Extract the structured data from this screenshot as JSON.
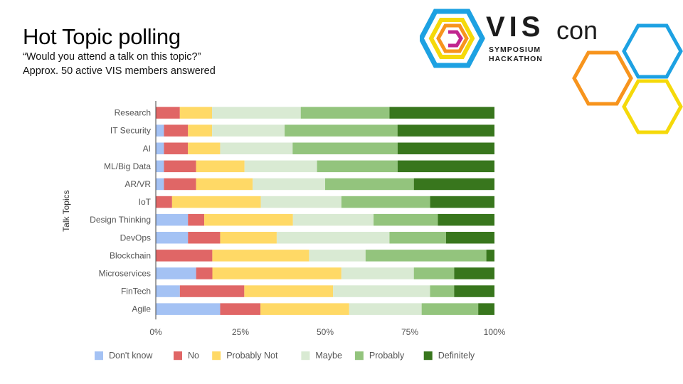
{
  "header": {
    "title": "Hot Topic polling",
    "subtitle_1": "“Would you attend a talk on this topic?”",
    "subtitle_2": "Approx. 50 active VIS members answered"
  },
  "logo": {
    "brand_bold": "VIS",
    "brand_light": "con",
    "line1": "SYMPOSIUM",
    "line2": "HACKATHON",
    "colors": [
      "#1da1e2",
      "#f7941d",
      "#f5d90a",
      "#c1268f"
    ]
  },
  "chart_data": {
    "type": "bar",
    "orientation": "horizontal",
    "stacked": "percent",
    "ylabel": "Talk Topics",
    "xlabel": "",
    "xlim": [
      0,
      100
    ],
    "x_ticks": [
      "0%",
      "25%",
      "50%",
      "75%",
      "100%"
    ],
    "categories": [
      "Research",
      "IT Security",
      "AI",
      "ML/Big Data",
      "AR/VR",
      "IoT",
      "Design Thinking",
      "DevOps",
      "Blockchain",
      "Microservices",
      "FinTech",
      "Agile"
    ],
    "series": [
      {
        "name": "Don't know",
        "color": "#a4c2f4",
        "values": [
          0,
          2.4,
          2.4,
          2.4,
          2.4,
          0,
          9.5,
          9.5,
          0,
          11.9,
          7.1,
          19
        ]
      },
      {
        "name": "No",
        "color": "#e06666",
        "values": [
          7.1,
          7.1,
          7.1,
          9.5,
          9.5,
          4.8,
          4.8,
          9.5,
          16.7,
          4.8,
          19,
          11.9
        ]
      },
      {
        "name": "Probably Not",
        "color": "#ffd966",
        "values": [
          9.5,
          7.1,
          9.5,
          14.3,
          16.7,
          26.2,
          26.2,
          16.7,
          28.6,
          38.1,
          26.2,
          26.2
        ]
      },
      {
        "name": "Maybe",
        "color": "#d9ead3",
        "values": [
          26.2,
          21.4,
          21.4,
          21.4,
          21.4,
          23.8,
          23.8,
          33.3,
          16.7,
          21.4,
          28.6,
          21.4
        ]
      },
      {
        "name": "Probably",
        "color": "#93c47d",
        "values": [
          26.2,
          33.3,
          31,
          23.8,
          26.2,
          26.2,
          19,
          16.7,
          35.7,
          11.9,
          7.1,
          16.7
        ]
      },
      {
        "name": "Definitely",
        "color": "#38761d",
        "values": [
          31,
          28.6,
          28.6,
          28.6,
          23.8,
          19,
          16.7,
          14.3,
          2.4,
          11.9,
          11.9,
          4.8
        ]
      }
    ],
    "legend_position": "bottom-left",
    "grid": false
  }
}
